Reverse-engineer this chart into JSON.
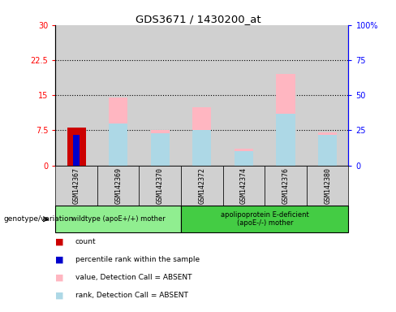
{
  "title": "GDS3671 / 1430200_at",
  "samples": [
    "GSM142367",
    "GSM142369",
    "GSM142370",
    "GSM142372",
    "GSM142374",
    "GSM142376",
    "GSM142380"
  ],
  "ylim_left": [
    0,
    30
  ],
  "ylim_right": [
    0,
    100
  ],
  "yticks_left": [
    0,
    7.5,
    15,
    22.5,
    30
  ],
  "ytick_labels_left": [
    "0",
    "7.5",
    "15",
    "22.5",
    "30"
  ],
  "yticks_right": [
    0,
    25,
    50,
    75,
    100
  ],
  "ytick_labels_right": [
    "0",
    "25",
    "50",
    "75",
    "100%"
  ],
  "bar_width": 0.45,
  "bars": {
    "GSM142367": {
      "count": 8.0,
      "rank": 6.5,
      "value_absent": 0,
      "rank_absent": 0
    },
    "GSM142369": {
      "count": 0,
      "rank": 0,
      "value_absent": 14.5,
      "rank_absent": 9.0
    },
    "GSM142370": {
      "count": 0,
      "rank": 0,
      "value_absent": 7.5,
      "rank_absent": 6.8
    },
    "GSM142372": {
      "count": 0,
      "rank": 0,
      "value_absent": 12.5,
      "rank_absent": 7.5
    },
    "GSM142374": {
      "count": 0,
      "rank": 0,
      "value_absent": 3.5,
      "rank_absent": 3.0
    },
    "GSM142376": {
      "count": 0,
      "rank": 0,
      "value_absent": 19.5,
      "rank_absent": 11.0
    },
    "GSM142380": {
      "count": 0,
      "rank": 0,
      "value_absent": 7.0,
      "rank_absent": 6.5
    }
  },
  "colors": {
    "count": "#CC0000",
    "rank": "#0000CC",
    "value_absent": "#FFB6C1",
    "rank_absent": "#ADD8E6",
    "sample_col_bg": "#D0D0D0",
    "group1_bg": "#90EE90",
    "group2_bg": "#44CC44"
  },
  "group1_indices": [
    0,
    1,
    2
  ],
  "group1_label": "wildtype (apoE+/+) mother",
  "group2_indices": [
    3,
    4,
    5,
    6
  ],
  "group2_label": "apolipoprotein E-deficient\n(apoE-/-) mother",
  "legend": [
    {
      "label": "count",
      "color": "#CC0000"
    },
    {
      "label": "percentile rank within the sample",
      "color": "#0000CC"
    },
    {
      "label": "value, Detection Call = ABSENT",
      "color": "#FFB6C1"
    },
    {
      "label": "rank, Detection Call = ABSENT",
      "color": "#ADD8E6"
    }
  ],
  "genotype_label": "genotype/variation"
}
